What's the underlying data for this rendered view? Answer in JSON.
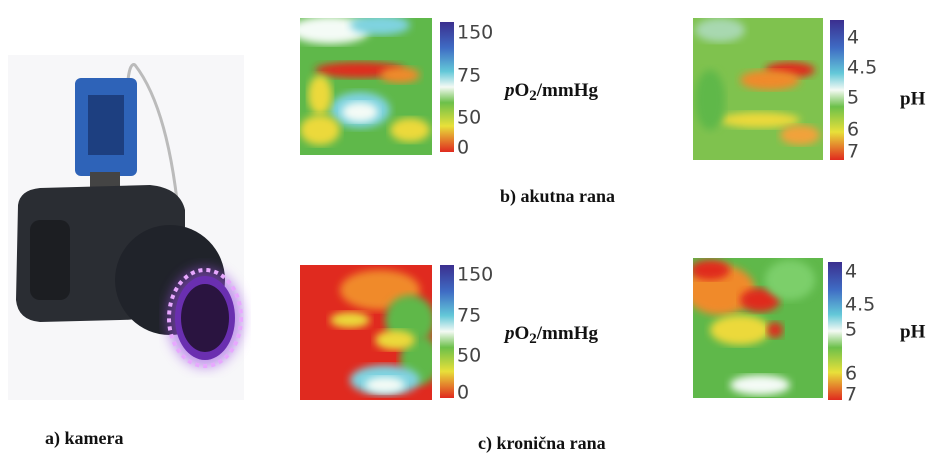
{
  "panels": {
    "a": {
      "caption": "a) kamera"
    },
    "b": {
      "caption": "b) akutna rana",
      "po2": {
        "ticks": [
          "150",
          "75",
          "50",
          "0"
        ],
        "label_p": "p",
        "label_o": "O",
        "label_sub": "2",
        "label_unit": "/mmHg"
      },
      "ph": {
        "ticks": [
          "4",
          "4.5",
          "5",
          "6",
          "7"
        ],
        "label": "pH"
      }
    },
    "c": {
      "caption": "c) kronična rana",
      "po2": {
        "ticks": [
          "150",
          "75",
          "50",
          "0"
        ],
        "label_p": "p",
        "label_o": "O",
        "label_sub": "2",
        "label_unit": "/mmHg"
      },
      "ph": {
        "ticks": [
          "4",
          "4.5",
          "5",
          "6",
          "7"
        ],
        "label": "pH"
      }
    }
  }
}
